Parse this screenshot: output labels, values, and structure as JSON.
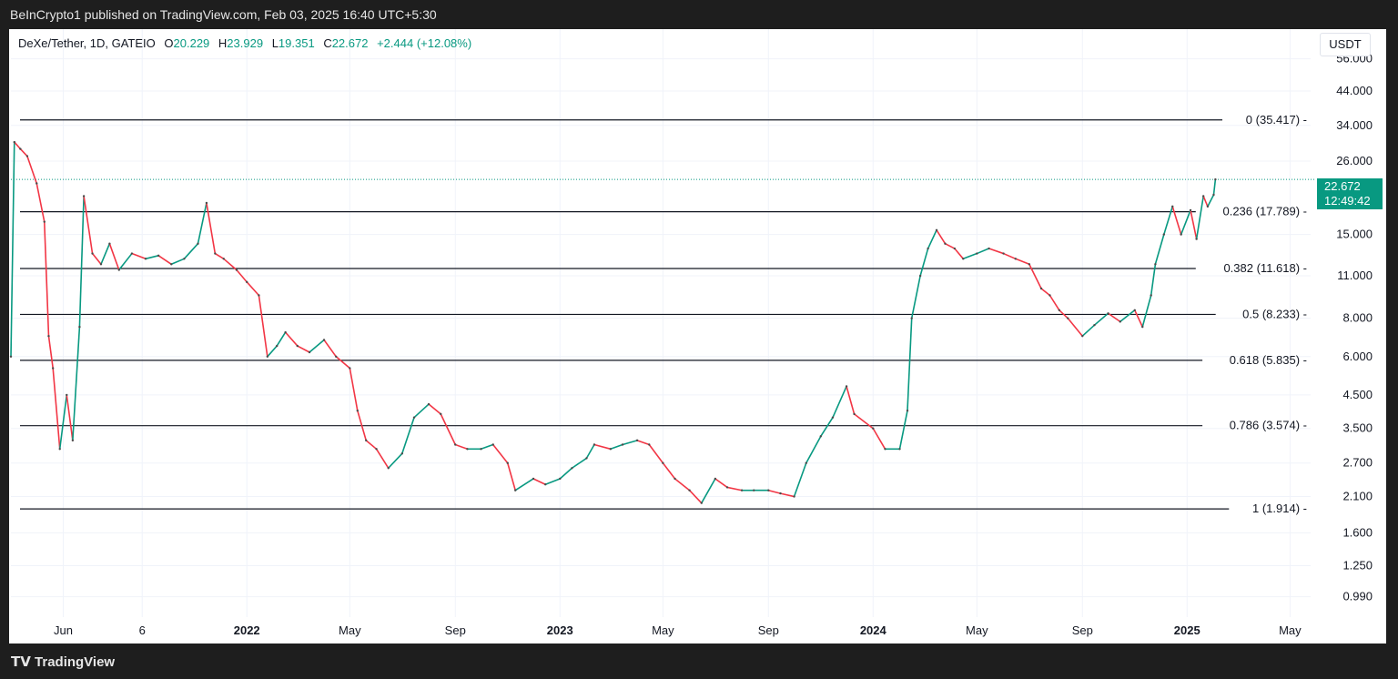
{
  "header": {
    "published": "BeInCrypto1 published on TradingView.com, Feb 03, 2025 16:40 UTC+5:30"
  },
  "legend": {
    "symbol": "DeXe/Tether, 1D, GATEIO",
    "o_label": "O",
    "o_val": "20.229",
    "h_label": "H",
    "h_val": "23.929",
    "l_label": "L",
    "l_val": "19.351",
    "c_label": "C",
    "c_val": "22.672",
    "change": "+2.444 (+12.08%)"
  },
  "unit": "USDT",
  "price_badge": {
    "price": "22.672",
    "countdown": "12:49:42"
  },
  "footer": {
    "logo": "TradingView"
  },
  "colors": {
    "up": "#089981",
    "down": "#f23645",
    "line": "#131722",
    "grid": "#f0f3fa"
  },
  "chart_data": {
    "type": "line",
    "title": "",
    "y_scale": "log",
    "y_unit": "USDT",
    "ylim": [
      0.85,
      70
    ],
    "xlim": [
      "2021-04-01",
      "2025-05-25"
    ],
    "y_ticks": [
      56,
      44,
      34,
      26,
      15,
      11,
      8,
      6,
      4.5,
      3.5,
      2.7,
      2.1,
      1.6,
      1.25,
      0.99
    ],
    "y_tick_labels": [
      "56.000",
      "44.000",
      "34.000",
      "26.000",
      "15.000",
      "11.000",
      "8.000",
      "6.000",
      "4.500",
      "3.500",
      "2.700",
      "2.100",
      "1.600",
      "1.250",
      "0.990"
    ],
    "x_ticks": [
      {
        "date": "2021-06-01",
        "label": "Jun",
        "bold": false
      },
      {
        "date": "2021-09-01",
        "label": "6",
        "bold": false
      },
      {
        "date": "2022-01-01",
        "label": "2022",
        "bold": true
      },
      {
        "date": "2022-05-01",
        "label": "May",
        "bold": false
      },
      {
        "date": "2022-09-01",
        "label": "Sep",
        "bold": false
      },
      {
        "date": "2023-01-01",
        "label": "2023",
        "bold": true
      },
      {
        "date": "2023-05-01",
        "label": "May",
        "bold": false
      },
      {
        "date": "2023-09-01",
        "label": "Sep",
        "bold": false
      },
      {
        "date": "2024-01-01",
        "label": "2024",
        "bold": true
      },
      {
        "date": "2024-05-01",
        "label": "May",
        "bold": false
      },
      {
        "date": "2024-09-01",
        "label": "Sep",
        "bold": false
      },
      {
        "date": "2025-01-01",
        "label": "2025",
        "bold": true
      },
      {
        "date": "2025-05-01",
        "label": "May",
        "bold": false
      }
    ],
    "fib_levels": [
      {
        "ratio": "0",
        "value": 35.417,
        "label": "0 (35.417)"
      },
      {
        "ratio": "0.236",
        "value": 17.789,
        "label": "0.236 (17.789)"
      },
      {
        "ratio": "0.382",
        "value": 11.618,
        "label": "0.382 (11.618)"
      },
      {
        "ratio": "0.5",
        "value": 8.233,
        "label": "0.5 (8.233)"
      },
      {
        "ratio": "0.618",
        "value": 5.835,
        "label": "0.618 (5.835)"
      },
      {
        "ratio": "0.786",
        "value": 3.574,
        "label": "0.786 (3.574)"
      },
      {
        "ratio": "1",
        "value": 1.914,
        "label": "1 (1.914)"
      }
    ],
    "last_price": 22.672,
    "series": [
      {
        "values": [
          [
            "2021-04-01",
            6.0
          ],
          [
            "2021-04-05",
            30.0
          ],
          [
            "2021-04-12",
            28.5
          ],
          [
            "2021-04-20",
            27.0
          ],
          [
            "2021-05-01",
            22.0
          ],
          [
            "2021-05-10",
            16.5
          ],
          [
            "2021-05-15",
            7.0
          ],
          [
            "2021-05-20",
            5.5
          ],
          [
            "2021-05-28",
            3.0
          ],
          [
            "2021-06-05",
            4.5
          ],
          [
            "2021-06-12",
            3.2
          ],
          [
            "2021-06-20",
            7.5
          ],
          [
            "2021-06-25",
            20.0
          ],
          [
            "2021-07-05",
            13.0
          ],
          [
            "2021-07-15",
            12.0
          ],
          [
            "2021-07-25",
            14.0
          ],
          [
            "2021-08-05",
            11.5
          ],
          [
            "2021-08-20",
            13.0
          ],
          [
            "2021-09-05",
            12.5
          ],
          [
            "2021-09-20",
            12.8
          ],
          [
            "2021-10-05",
            12.0
          ],
          [
            "2021-10-20",
            12.5
          ],
          [
            "2021-11-05",
            14.0
          ],
          [
            "2021-11-15",
            19.0
          ],
          [
            "2021-11-25",
            13.0
          ],
          [
            "2021-12-05",
            12.5
          ],
          [
            "2021-12-20",
            11.5
          ],
          [
            "2022-01-01",
            10.5
          ],
          [
            "2022-01-15",
            9.5
          ],
          [
            "2022-01-25",
            6.0
          ],
          [
            "2022-02-05",
            6.5
          ],
          [
            "2022-02-15",
            7.2
          ],
          [
            "2022-03-01",
            6.5
          ],
          [
            "2022-03-15",
            6.2
          ],
          [
            "2022-04-01",
            6.8
          ],
          [
            "2022-04-15",
            6.0
          ],
          [
            "2022-05-01",
            5.5
          ],
          [
            "2022-05-10",
            4.0
          ],
          [
            "2022-05-20",
            3.2
          ],
          [
            "2022-06-01",
            3.0
          ],
          [
            "2022-06-15",
            2.6
          ],
          [
            "2022-07-01",
            2.9
          ],
          [
            "2022-07-15",
            3.8
          ],
          [
            "2022-08-01",
            4.2
          ],
          [
            "2022-08-15",
            3.9
          ],
          [
            "2022-09-01",
            3.1
          ],
          [
            "2022-09-15",
            3.0
          ],
          [
            "2022-10-01",
            3.0
          ],
          [
            "2022-10-15",
            3.1
          ],
          [
            "2022-11-01",
            2.7
          ],
          [
            "2022-11-10",
            2.2
          ],
          [
            "2022-12-01",
            2.4
          ],
          [
            "2022-12-15",
            2.3
          ],
          [
            "2023-01-01",
            2.4
          ],
          [
            "2023-01-15",
            2.6
          ],
          [
            "2023-02-01",
            2.8
          ],
          [
            "2023-02-10",
            3.1
          ],
          [
            "2023-03-01",
            3.0
          ],
          [
            "2023-03-15",
            3.1
          ],
          [
            "2023-04-01",
            3.2
          ],
          [
            "2023-04-15",
            3.1
          ],
          [
            "2023-05-01",
            2.7
          ],
          [
            "2023-05-15",
            2.4
          ],
          [
            "2023-06-01",
            2.2
          ],
          [
            "2023-06-15",
            2.0
          ],
          [
            "2023-07-01",
            2.4
          ],
          [
            "2023-07-15",
            2.25
          ],
          [
            "2023-08-01",
            2.2
          ],
          [
            "2023-08-15",
            2.2
          ],
          [
            "2023-09-01",
            2.2
          ],
          [
            "2023-09-15",
            2.15
          ],
          [
            "2023-10-01",
            2.1
          ],
          [
            "2023-10-15",
            2.7
          ],
          [
            "2023-11-01",
            3.3
          ],
          [
            "2023-11-15",
            3.8
          ],
          [
            "2023-12-01",
            4.8
          ],
          [
            "2023-12-10",
            3.9
          ],
          [
            "2024-01-01",
            3.5
          ],
          [
            "2024-01-15",
            3.0
          ],
          [
            "2024-02-01",
            3.0
          ],
          [
            "2024-02-10",
            4.0
          ],
          [
            "2024-02-15",
            8.0
          ],
          [
            "2024-02-25",
            11.0
          ],
          [
            "2024-03-05",
            13.5
          ],
          [
            "2024-03-15",
            15.5
          ],
          [
            "2024-03-25",
            14.0
          ],
          [
            "2024-04-05",
            13.5
          ],
          [
            "2024-04-15",
            12.5
          ],
          [
            "2024-05-01",
            13.0
          ],
          [
            "2024-05-15",
            13.5
          ],
          [
            "2024-06-01",
            13.0
          ],
          [
            "2024-06-15",
            12.5
          ],
          [
            "2024-07-01",
            12.0
          ],
          [
            "2024-07-15",
            10.0
          ],
          [
            "2024-07-25",
            9.5
          ],
          [
            "2024-08-05",
            8.5
          ],
          [
            "2024-08-15",
            8.0
          ],
          [
            "2024-09-01",
            7.0
          ],
          [
            "2024-09-15",
            7.6
          ],
          [
            "2024-10-01",
            8.3
          ],
          [
            "2024-10-15",
            7.8
          ],
          [
            "2024-11-01",
            8.5
          ],
          [
            "2024-11-10",
            7.5
          ],
          [
            "2024-11-20",
            9.5
          ],
          [
            "2024-11-25",
            12.0
          ],
          [
            "2024-12-05",
            15.0
          ],
          [
            "2024-12-15",
            18.5
          ],
          [
            "2024-12-25",
            15.0
          ],
          [
            "2025-01-05",
            18.0
          ],
          [
            "2025-01-12",
            14.5
          ],
          [
            "2025-01-20",
            20.0
          ],
          [
            "2025-01-25",
            18.5
          ],
          [
            "2025-02-01",
            20.2
          ],
          [
            "2025-02-03",
            22.672
          ]
        ]
      }
    ]
  }
}
